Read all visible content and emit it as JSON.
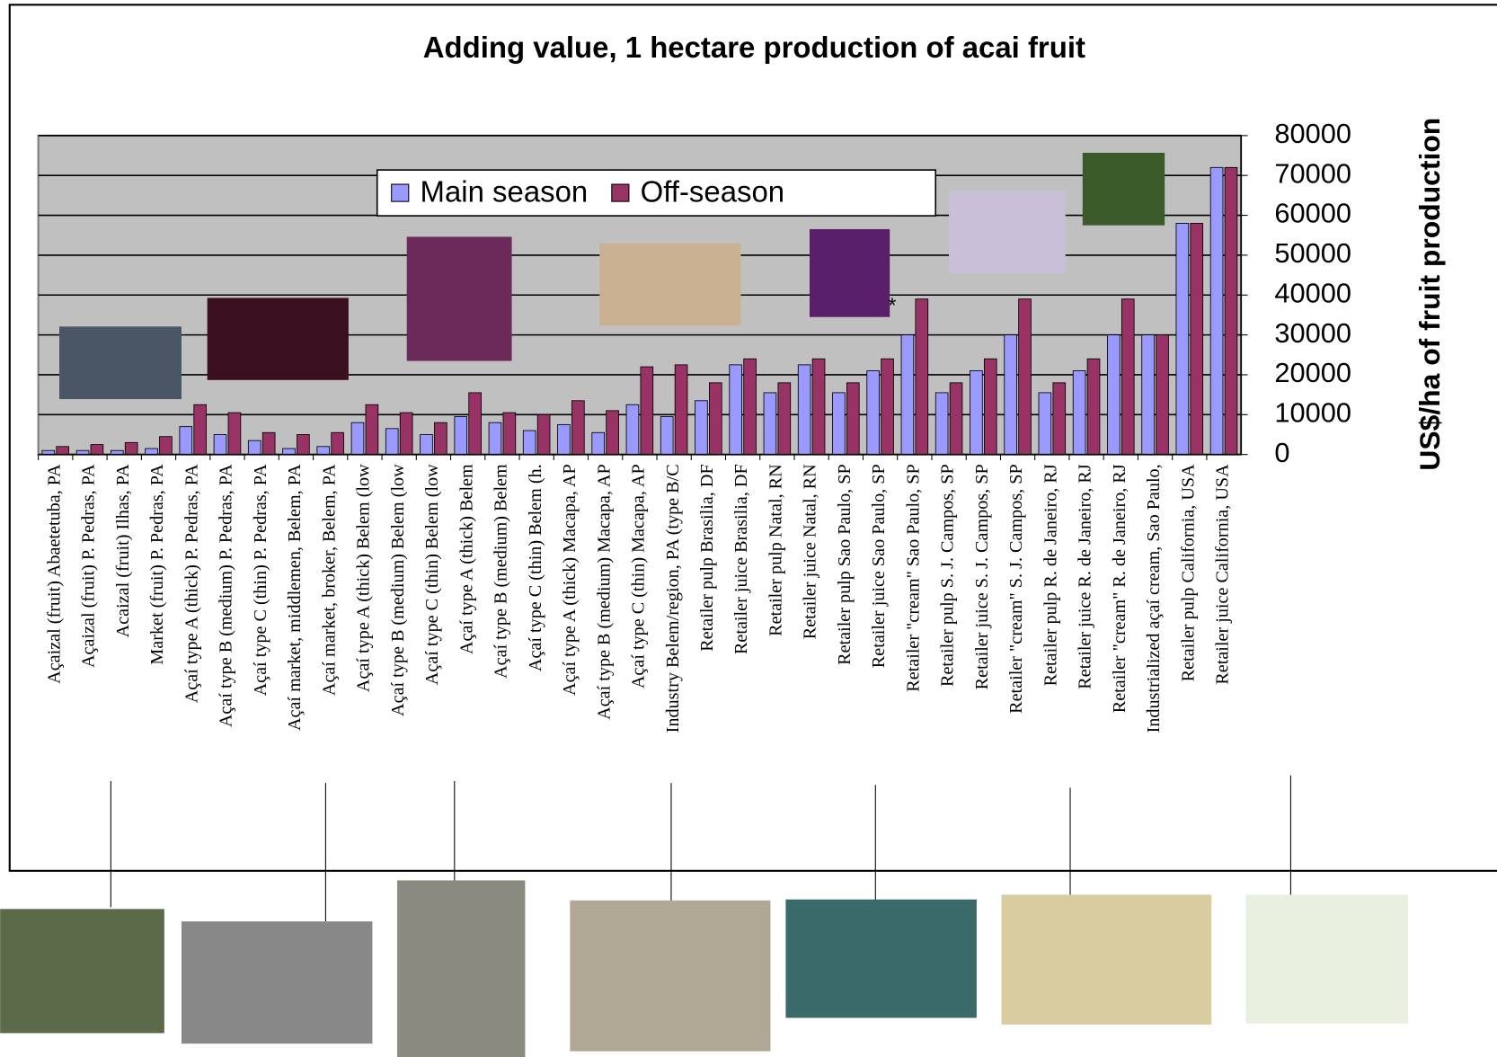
{
  "chart_data": {
    "type": "bar",
    "title": "Adding value, 1 hectare production of acai fruit",
    "y_label": "US$/ha of fruit production",
    "annotation": "*",
    "categories": [
      "Açaizal (fruit) Abaetetuba, PA",
      "Açaizal (fruit) P. Pedras, PA",
      "Acaizal (fruit) Ilhas, PA",
      "Market (fruit) P. Pedras, PA",
      "Açaí type A (thick) P. Pedras, PA",
      "Açaí type B (medium) P. Pedras, PA",
      "Açaí type C (thin) P. Pedras, PA",
      "Açaí market, middlemen, Belem, PA",
      "Açaí market, broker, Belem, PA",
      "Açaí type A (thick) Belem (low",
      "Açaí type B (medium) Belem (low",
      "Açaí type C (thin) Belem (low",
      "Açaí type A (thick) Belem",
      "Açaí type B (medium) Belem",
      "Açaí type C (thin) Belem (h.",
      "Açaí type A (thick) Macapa, AP",
      "Açaí type B (medium) Macapa, AP",
      "Açaí type C (thin) Macapa, AP",
      "Industry Belem/region, PA (type B/C",
      "Retailer pulp Brasilia, DF",
      "Retailer juice Brasilia, DF",
      "Retailer pulp Natal, RN",
      "Retailer juice Natal, RN",
      "Retailer pulp Sao Paulo, SP",
      "Retailer juice Sao Paulo, SP",
      "Retailer \"cream\" Sao Paulo, SP",
      "Retailer pulp S. J. Campos, SP",
      "Retailer juice S. J. Campos, SP",
      "Retailer \"cream\" S. J. Campos, SP",
      "Retailer pulp R. de Janeiro, RJ",
      "Retailer juice R. de Janeiro, RJ",
      "Retailer \"cream\" R. de Janeiro, RJ",
      "Industrialized açaí cream, Sao Paulo,",
      "Retailer pulp California, USA",
      "Retailer juice California, USA"
    ],
    "series": [
      {
        "name": "Main season",
        "color": "#9999ff",
        "values": [
          1000,
          1000,
          1000,
          1500,
          7000,
          5000,
          3500,
          1500,
          2000,
          8000,
          6500,
          5000,
          9500,
          8000,
          6000,
          7500,
          5500,
          12500,
          9500,
          13500,
          22500,
          15500,
          22500,
          15500,
          21000,
          30000,
          15500,
          21000,
          30000,
          15500,
          21000,
          30000,
          30000,
          58000,
          72000
        ]
      },
      {
        "name": "Off-season",
        "color": "#993366",
        "values": [
          2000,
          2500,
          3000,
          4500,
          12500,
          10500,
          5500,
          5000,
          5500,
          12500,
          10500,
          8000,
          15500,
          10500,
          10000,
          13500,
          11000,
          22000,
          22500,
          18000,
          24000,
          18000,
          24000,
          18000,
          24000,
          39000,
          18000,
          24000,
          39000,
          18000,
          24000,
          39000,
          30000,
          58000,
          72000
        ]
      }
    ],
    "ylim": [
      0,
      80000
    ],
    "yticks": [
      0,
      10000,
      20000,
      30000,
      40000,
      50000,
      60000,
      70000,
      80000
    ],
    "grid": true,
    "legend": "top"
  }
}
